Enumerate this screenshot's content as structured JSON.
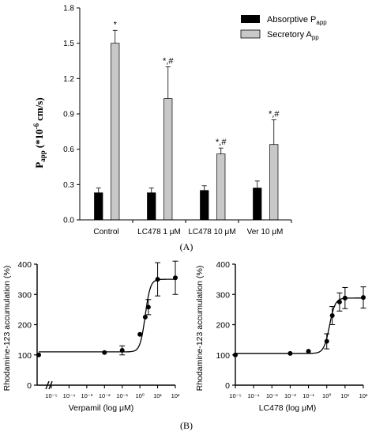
{
  "panel_labels": {
    "a": "(A)",
    "b": "(B)"
  },
  "chart_data": [
    {
      "type": "bar",
      "panel": "(A)",
      "ylabel_main": "P",
      "ylabel_sub": "app",
      "ylabel_rest": "(*10",
      "ylabel_exp": "-6",
      "ylabel_unit": "cm/s)",
      "ylim": [
        0,
        1.8
      ],
      "yticks": [
        "0.0",
        "0.3",
        "0.6",
        "0.9",
        "1.2",
        "1.5",
        "1.8"
      ],
      "categories": [
        "Control",
        "LC478 1 μM",
        "LC478 10 μM",
        "Ver 10 μM"
      ],
      "series": [
        {
          "name": "Absorptive P",
          "name_sub": "app",
          "color": "#000000",
          "values": [
            0.23,
            0.23,
            0.25,
            0.27
          ],
          "errors": [
            0.04,
            0.04,
            0.04,
            0.06
          ],
          "annotations": [
            "",
            "",
            "",
            ""
          ]
        },
        {
          "name": "Secretory A",
          "name_sub": "pp",
          "color": "#c8c8c8",
          "values": [
            1.5,
            1.03,
            0.56,
            0.64
          ],
          "errors": [
            0.11,
            0.27,
            0.05,
            0.21
          ],
          "annotations": [
            "*",
            "*,#",
            "*,#",
            "*,#"
          ]
        }
      ],
      "legend_position": "top-right"
    },
    {
      "type": "line",
      "panel": "(B) left",
      "ylabel": "Rhodamine-123 accumulation (%)",
      "xlabel": "Verpamil (log μM)",
      "x_scale": "log",
      "ylim": [
        0,
        400
      ],
      "yticks": [
        "0",
        "100",
        "200",
        "300",
        "400"
      ],
      "xticks": [
        "10⁻⁵",
        "10⁻⁴",
        "10⁻³",
        "10⁻²",
        "10⁻¹",
        "10⁰",
        "10¹",
        "10²"
      ],
      "axis_break": true,
      "points": [
        {
          "x": 1e-06,
          "y": 100,
          "err": 0
        },
        {
          "x": 0.01,
          "y": 108,
          "err": 0
        },
        {
          "x": 0.1,
          "y": 115,
          "err": 15
        },
        {
          "x": 1,
          "y": 168,
          "err": 0
        },
        {
          "x": 2,
          "y": 225,
          "err": 0
        },
        {
          "x": 3,
          "y": 258,
          "err": 25
        },
        {
          "x": 10,
          "y": 350,
          "err": 55
        },
        {
          "x": 100,
          "y": 355,
          "err": 55
        }
      ],
      "fit": {
        "bottom": 110,
        "top": 350,
        "log_ec50": 0.3,
        "hill": 3
      }
    },
    {
      "type": "line",
      "panel": "(B) right",
      "ylabel": "Rhodamine-123 accumulation (%)",
      "xlabel": "LC478 (log μM)",
      "x_scale": "log",
      "ylim": [
        0,
        400
      ],
      "yticks": [
        "0",
        "100",
        "200",
        "300",
        "400"
      ],
      "xticks": [
        "10⁻⁵",
        "10⁻⁴",
        "10⁻³",
        "10⁻²",
        "10⁻¹",
        "10⁰",
        "10¹",
        "10²"
      ],
      "axis_break": false,
      "points": [
        {
          "x": 1e-05,
          "y": 100,
          "err": 0
        },
        {
          "x": 0.01,
          "y": 105,
          "err": 0
        },
        {
          "x": 0.1,
          "y": 112,
          "err": 0
        },
        {
          "x": 1,
          "y": 145,
          "err": 25
        },
        {
          "x": 2,
          "y": 230,
          "err": 30
        },
        {
          "x": 5,
          "y": 275,
          "err": 30
        },
        {
          "x": 10,
          "y": 288,
          "err": 35
        },
        {
          "x": 100,
          "y": 290,
          "err": 35
        }
      ],
      "fit": {
        "bottom": 105,
        "top": 288,
        "log_ec50": 0.15,
        "hill": 2.8
      }
    }
  ]
}
